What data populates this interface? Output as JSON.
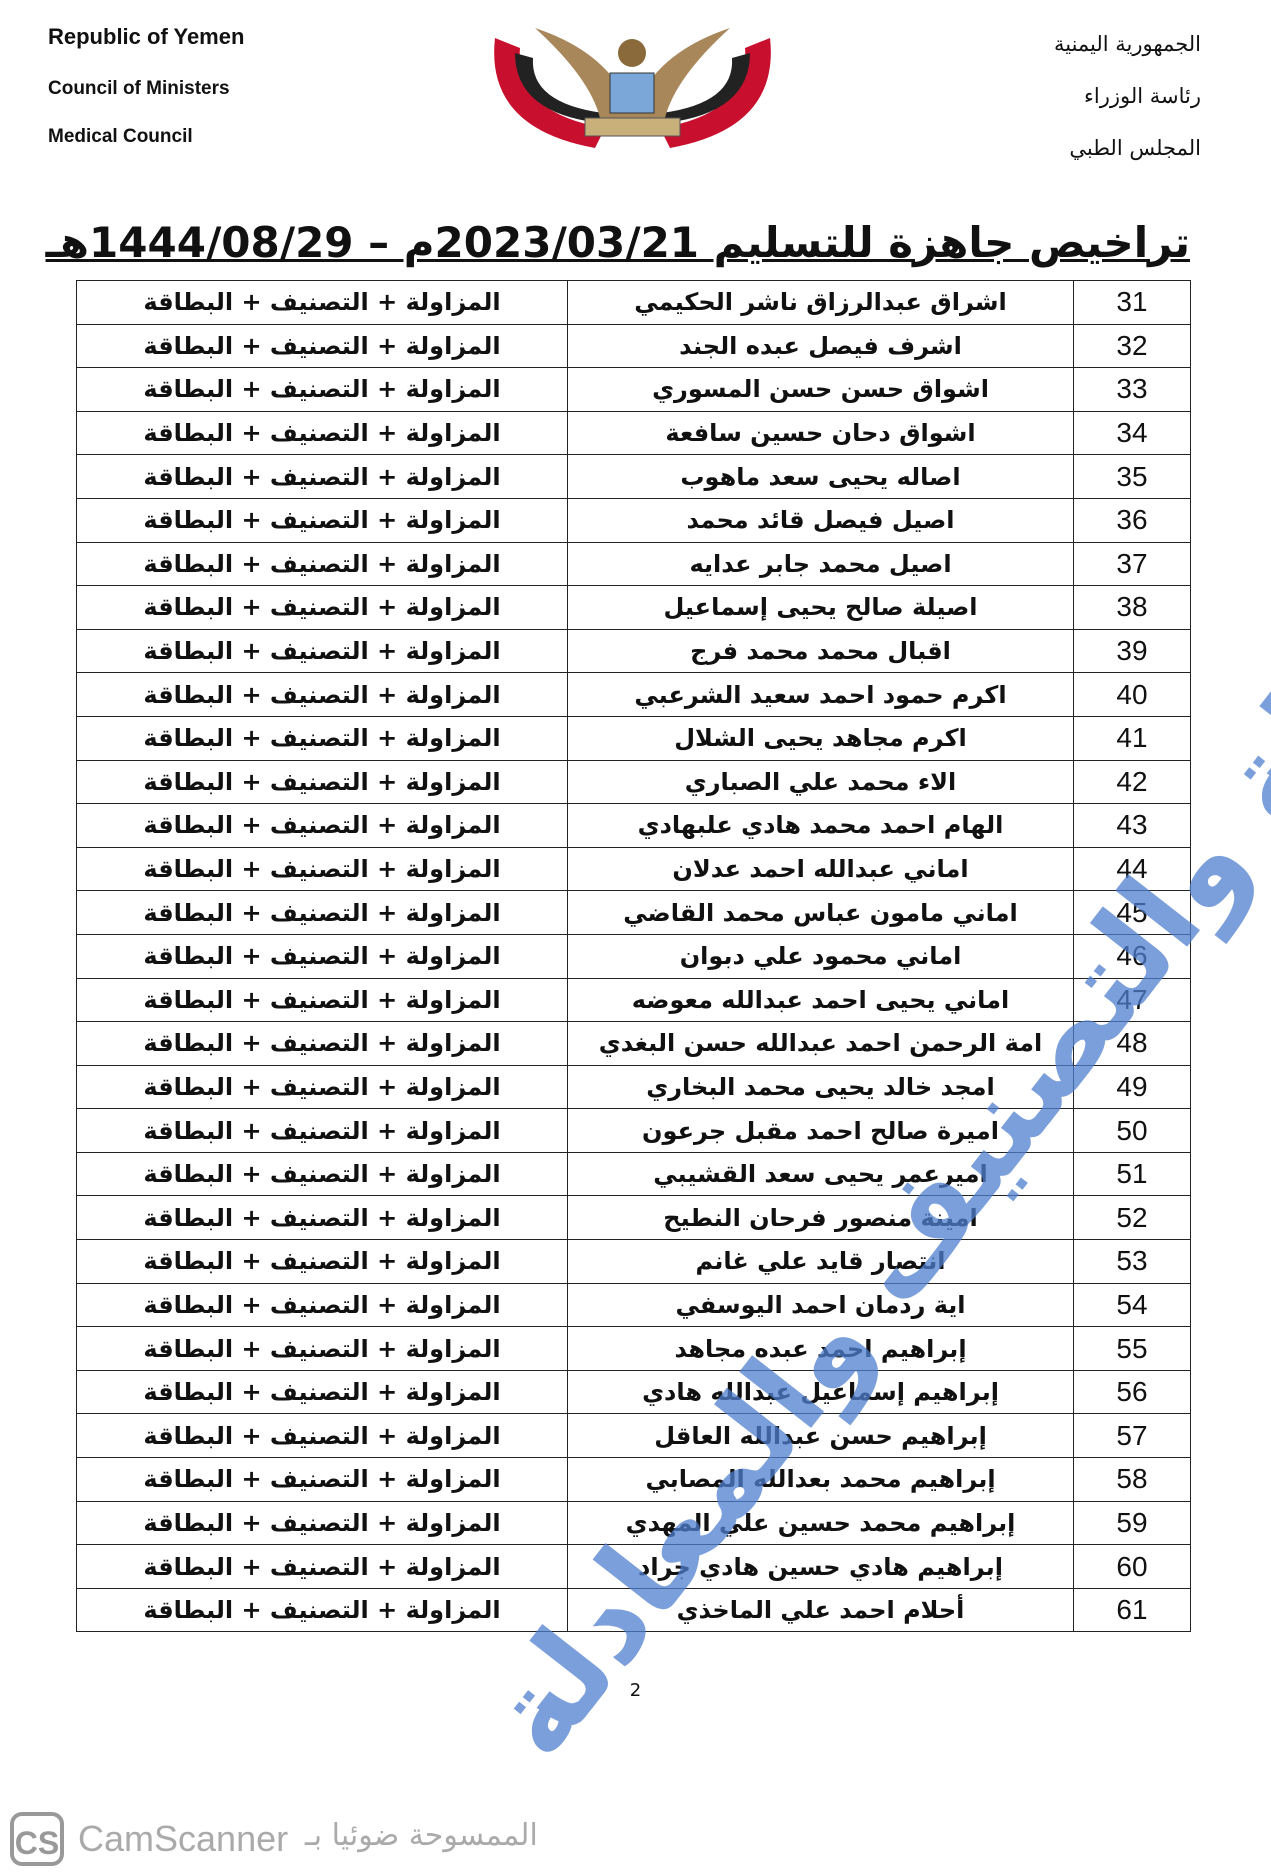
{
  "header": {
    "left": [
      "Republic of Yemen",
      "Council of Ministers",
      "Medical Council"
    ],
    "right": [
      "الجمهورية اليمنية",
      "رئاسة الوزراء",
      "المجلس الطبي"
    ]
  },
  "title": "تراخيص جاهزة للتسليم 2023/03/21م – 1444/08/29هـ",
  "table": {
    "rows": [
      [
        31,
        "اشراق عبدالرزاق ناشر الحكيمي",
        "المزاولة + التصنيف + البطاقة"
      ],
      [
        32,
        "اشرف فيصل عبده الجند",
        "المزاولة + التصنيف + البطاقة"
      ],
      [
        33,
        "اشواق حسن حسن المسوري",
        "المزاولة + التصنيف + البطاقة"
      ],
      [
        34,
        "اشواق دحان حسين سافعة",
        "المزاولة + التصنيف + البطاقة"
      ],
      [
        35,
        "اصاله يحيى سعد ماهوب",
        "المزاولة + التصنيف + البطاقة"
      ],
      [
        36,
        "اصيل فيصل قائد محمد",
        "المزاولة + التصنيف + البطاقة"
      ],
      [
        37,
        "اصيل محمد جابر عدايه",
        "المزاولة + التصنيف + البطاقة"
      ],
      [
        38,
        "اصيلة صالح يحيى إسماعيل",
        "المزاولة + التصنيف + البطاقة"
      ],
      [
        39,
        "اقبال محمد محمد فرج",
        "المزاولة + التصنيف + البطاقة"
      ],
      [
        40,
        "اكرم حمود احمد سعيد الشرعبي",
        "المزاولة + التصنيف + البطاقة"
      ],
      [
        41,
        "اكرم مجاهد يحيى الشلال",
        "المزاولة + التصنيف + البطاقة"
      ],
      [
        42,
        "الاء محمد علي الصباري",
        "المزاولة + التصنيف + البطاقة"
      ],
      [
        43,
        "الهام احمد محمد هادي علبهادي",
        "المزاولة + التصنيف + البطاقة"
      ],
      [
        44,
        "اماني عبدالله احمد عدلان",
        "المزاولة + التصنيف + البطاقة"
      ],
      [
        45,
        "اماني مامون عباس محمد القاضي",
        "المزاولة + التصنيف + البطاقة"
      ],
      [
        46,
        "اماني محمود علي دبوان",
        "المزاولة + التصنيف + البطاقة"
      ],
      [
        47,
        "اماني يحيى احمد عبدالله معوضه",
        "المزاولة + التصنيف + البطاقة"
      ],
      [
        48,
        "امة الرحمن احمد عبدالله حسن البغدي",
        "المزاولة + التصنيف + البطاقة"
      ],
      [
        49,
        "امجد خالد يحيى محمد البخاري",
        "المزاولة + التصنيف + البطاقة"
      ],
      [
        50,
        "اميرة صالح احمد مقبل جرعون",
        "المزاولة + التصنيف + البطاقة"
      ],
      [
        51,
        "اميرعمر يحيى سعد القشيبي",
        "المزاولة + التصنيف + البطاقة"
      ],
      [
        52,
        "امينة منصور فرحان النطيح",
        "المزاولة + التصنيف + البطاقة"
      ],
      [
        53,
        "انتصار قايد علي غانم",
        "المزاولة + التصنيف + البطاقة"
      ],
      [
        54,
        "اية ردمان احمد اليوسفي",
        "المزاولة + التصنيف + البطاقة"
      ],
      [
        55,
        "إبراهيم احمد عبده مجاهد",
        "المزاولة + التصنيف + البطاقة"
      ],
      [
        56,
        "إبراهيم إسماعيل عبدالله هادي",
        "المزاولة + التصنيف + البطاقة"
      ],
      [
        57,
        "إبراهيم حسن عبدالله العاقل",
        "المزاولة + التصنيف + البطاقة"
      ],
      [
        58,
        "إبراهيم محمد بعدالله المصابي",
        "المزاولة + التصنيف + البطاقة"
      ],
      [
        59,
        "إبراهيم محمد حسين علي المهدي",
        "المزاولة + التصنيف + البطاقة"
      ],
      [
        60,
        "إبراهيم هادي حسين هادي جراد",
        "المزاولة + التصنيف + البطاقة"
      ],
      [
        61,
        "أحلام احمد علي الماخذي",
        "المزاولة + التصنيف + البطاقة"
      ]
    ]
  },
  "watermark": "لجنة المزاولة والتصنيف والمعادلة",
  "page_number": "2",
  "footer": {
    "logo": "CS",
    "app": "CamScanner",
    "scanned_by": "الممسوحة ضوئيا بـ"
  }
}
